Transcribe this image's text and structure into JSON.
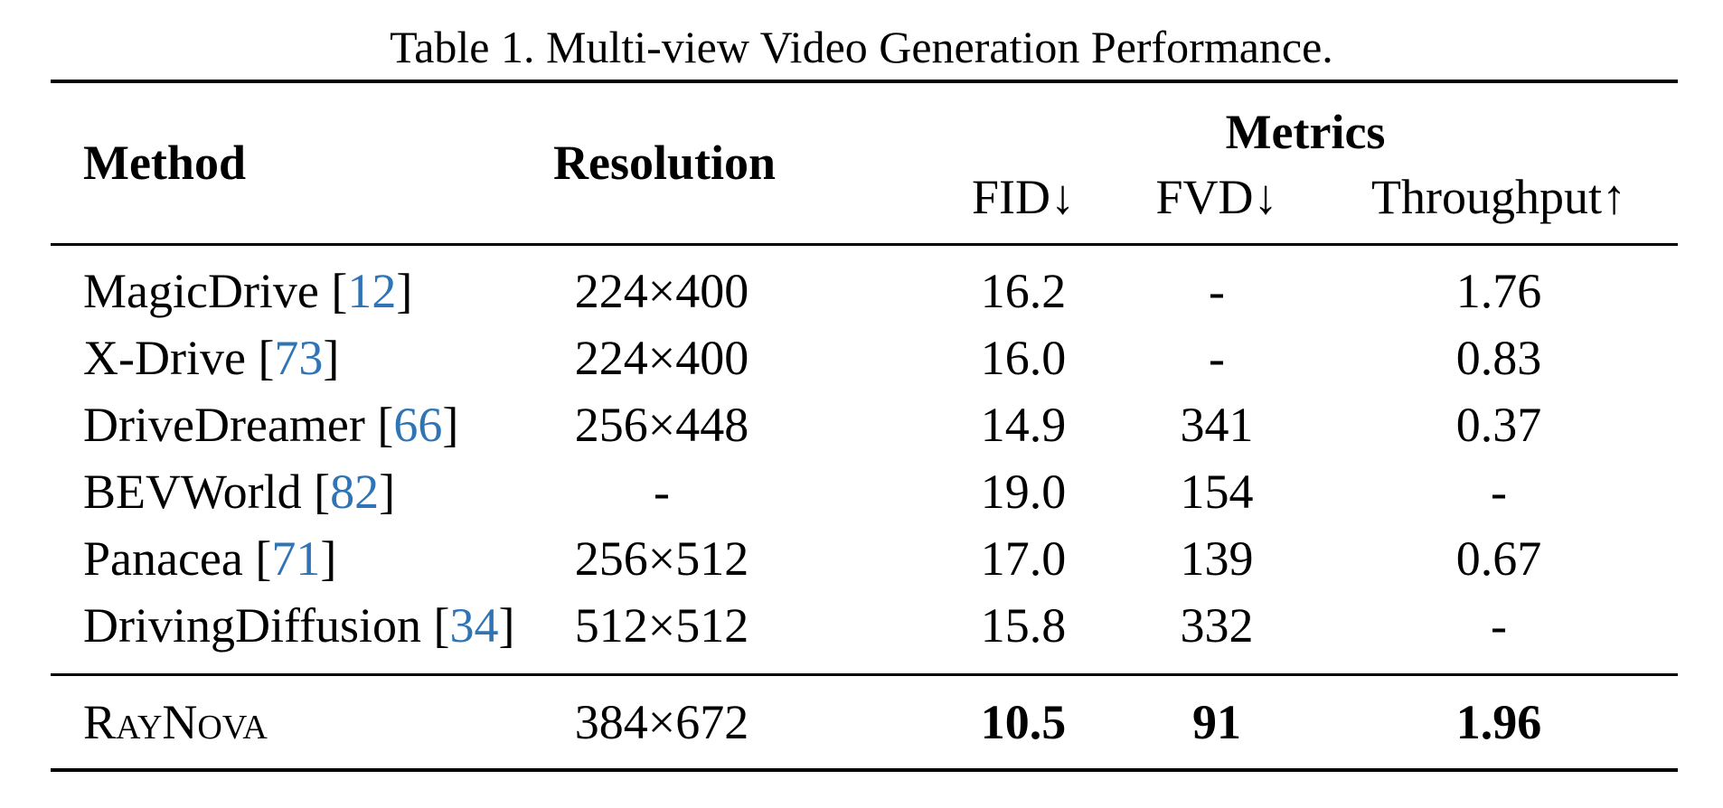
{
  "caption": "Table 1. Multi-view Video Generation Performance.",
  "header": {
    "method": "Method",
    "resolution": "Resolution",
    "metrics": "Metrics",
    "fid": "FID↓",
    "fvd": "FVD↓",
    "throughput": "Throughput↑"
  },
  "rows": [
    {
      "method": "MagicDrive",
      "cite": "12",
      "resolution": "224×400",
      "fid": "16.2",
      "fvd": "-",
      "throughput": "1.76"
    },
    {
      "method": "X-Drive",
      "cite": "73",
      "resolution": "224×400",
      "fid": "16.0",
      "fvd": "-",
      "throughput": "0.83"
    },
    {
      "method": "DriveDreamer",
      "cite": "66",
      "resolution": "256×448",
      "fid": "14.9",
      "fvd": "341",
      "throughput": "0.37"
    },
    {
      "method": "BEVWorld",
      "cite": "82",
      "resolution": "-",
      "fid": "19.0",
      "fvd": "154",
      "throughput": "-"
    },
    {
      "method": "Panacea",
      "cite": "71",
      "resolution": "256×512",
      "fid": "17.0",
      "fvd": "139",
      "throughput": "0.67"
    },
    {
      "method": "DrivingDiffusion",
      "cite": "34",
      "resolution": "512×512",
      "fid": "15.8",
      "fvd": "332",
      "throughput": "-"
    }
  ],
  "ours": {
    "method": "RayNova",
    "resolution": "384×672",
    "fid": "10.5",
    "fvd": "91",
    "throughput": "1.96"
  },
  "colors": {
    "citation": "#2f74b5"
  }
}
